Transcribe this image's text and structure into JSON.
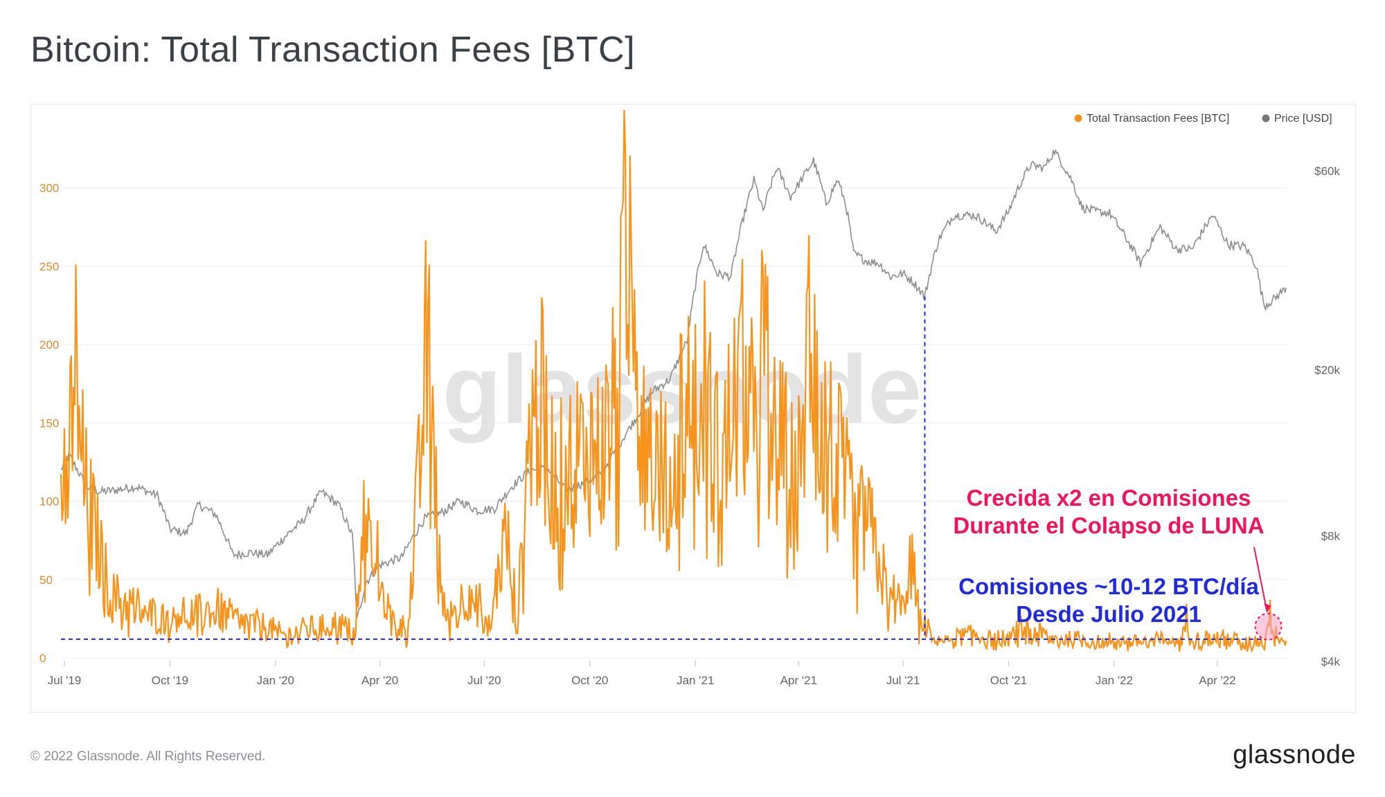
{
  "page": {
    "title": "Bitcoin: Total Transaction Fees [BTC]",
    "copyright": "© 2022 Glassnode. All Rights Reserved.",
    "brand_logo": "glassnode",
    "watermark": "glassnode"
  },
  "colors": {
    "fees": "#f7931a",
    "price": "#8c8c8c",
    "grid": "#ececec",
    "annotation_blue": "#1f2ae0",
    "annotation_pink": "#f0155a",
    "title": "#3b4046",
    "axis_text": "#5f6368",
    "fee_tick_text": "#d98a2b"
  },
  "legend": {
    "placement": "top-right",
    "items": [
      {
        "label": "Total Transaction Fees [BTC]",
        "color": "#f7931a"
      },
      {
        "label": "Price [USD]",
        "color": "#777777"
      }
    ]
  },
  "annotations": {
    "luna_text_line1": "Crecida x2 en Comisiones",
    "luna_text_line2": "Durante el Colapso de LUNA",
    "fees_text_line1": "Comisiones ~10-12 BTC/día",
    "fees_text_line2": "Desde Julio 2021"
  },
  "chart_data": {
    "type": "line",
    "title": "Bitcoin: Total Transaction Fees [BTC]",
    "x_tick_labels": [
      "Jul '19",
      "Oct '19",
      "Jan '20",
      "Apr '20",
      "Jul '20",
      "Oct '20",
      "Jan '21",
      "Apr '21",
      "Jul '21",
      "Oct '21",
      "Jan '22",
      "Apr '22"
    ],
    "x_tick_dates": [
      "2019-07-01",
      "2019-10-01",
      "2020-01-01",
      "2020-04-01",
      "2020-07-01",
      "2020-10-01",
      "2021-01-01",
      "2021-04-01",
      "2021-07-01",
      "2021-10-01",
      "2022-01-01",
      "2022-04-01"
    ],
    "x_range": [
      "2019-06-28",
      "2022-06-01"
    ],
    "left_axis": {
      "label": "",
      "ticks": [
        0,
        50,
        100,
        150,
        200,
        250,
        300
      ],
      "ylim": [
        0,
        340
      ]
    },
    "right_axis": {
      "label": "",
      "scale": "log",
      "ticks": [
        4000,
        8000,
        20000,
        60000
      ],
      "tick_labels": [
        "$4k",
        "$8k",
        "$20k",
        "$60k"
      ]
    },
    "grid": true,
    "series": [
      {
        "name": "Total Transaction Fees [BTC]",
        "axis": "left",
        "color": "#f7931a",
        "x": [
          "2019-06-28",
          "2019-07-03",
          "2019-07-10",
          "2019-07-18",
          "2019-07-28",
          "2019-08-10",
          "2019-08-25",
          "2019-09-10",
          "2019-09-25",
          "2019-10-10",
          "2019-10-25",
          "2019-11-10",
          "2019-11-25",
          "2019-12-10",
          "2019-12-25",
          "2020-01-10",
          "2020-01-25",
          "2020-02-10",
          "2020-02-25",
          "2020-03-10",
          "2020-03-18",
          "2020-03-28",
          "2020-04-10",
          "2020-04-25",
          "2020-05-05",
          "2020-05-12",
          "2020-05-18",
          "2020-05-26",
          "2020-06-05",
          "2020-06-20",
          "2020-07-05",
          "2020-07-20",
          "2020-07-30",
          "2020-08-10",
          "2020-08-20",
          "2020-09-01",
          "2020-09-15",
          "2020-09-28",
          "2020-10-10",
          "2020-10-20",
          "2020-10-28",
          "2020-11-03",
          "2020-11-08",
          "2020-11-14",
          "2020-11-20",
          "2020-11-28",
          "2020-12-08",
          "2020-12-20",
          "2021-01-03",
          "2021-01-10",
          "2021-01-20",
          "2021-02-01",
          "2021-02-10",
          "2021-02-20",
          "2021-03-01",
          "2021-03-10",
          "2021-03-20",
          "2021-04-01",
          "2021-04-08",
          "2021-04-14",
          "2021-04-18",
          "2021-04-22",
          "2021-04-28",
          "2021-05-05",
          "2021-05-12",
          "2021-05-20",
          "2021-05-30",
          "2021-06-10",
          "2021-06-20",
          "2021-06-30",
          "2021-07-08",
          "2021-07-15",
          "2021-08-01",
          "2021-08-15",
          "2021-09-01",
          "2021-09-15",
          "2021-10-01",
          "2021-10-15",
          "2021-11-01",
          "2021-11-15",
          "2021-12-01",
          "2021-12-15",
          "2022-01-01",
          "2022-01-15",
          "2022-02-01",
          "2022-02-15",
          "2022-03-01",
          "2022-03-05",
          "2022-03-15",
          "2022-04-01",
          "2022-04-15",
          "2022-04-25",
          "2022-05-05",
          "2022-05-10",
          "2022-05-13",
          "2022-05-16",
          "2022-05-25",
          "2022-05-31"
        ],
        "values": [
          120,
          95,
          198,
          110,
          80,
          40,
          35,
          30,
          25,
          30,
          28,
          32,
          25,
          22,
          20,
          14,
          18,
          20,
          22,
          16,
          85,
          70,
          25,
          18,
          110,
          200,
          140,
          30,
          30,
          45,
          20,
          80,
          25,
          150,
          160,
          110,
          125,
          140,
          130,
          150,
          200,
          290,
          280,
          160,
          180,
          130,
          110,
          160,
          180,
          170,
          130,
          150,
          180,
          150,
          200,
          140,
          130,
          120,
          180,
          300,
          180,
          150,
          140,
          125,
          110,
          80,
          90,
          60,
          40,
          35,
          65,
          25,
          12,
          13,
          15,
          12,
          13,
          20,
          14,
          12,
          12,
          10,
          12,
          10,
          11,
          12,
          10,
          25,
          12,
          13,
          12,
          9,
          12,
          10,
          13,
          28,
          14,
          11
        ]
      },
      {
        "name": "Price [USD]",
        "axis": "right",
        "color": "#777777",
        "x": [
          "2019-06-28",
          "2019-07-05",
          "2019-07-20",
          "2019-08-01",
          "2019-08-15",
          "2019-09-01",
          "2019-09-20",
          "2019-10-01",
          "2019-10-15",
          "2019-10-26",
          "2019-11-10",
          "2019-11-25",
          "2019-12-10",
          "2019-12-25",
          "2020-01-10",
          "2020-01-25",
          "2020-02-10",
          "2020-02-25",
          "2020-03-08",
          "2020-03-12",
          "2020-03-20",
          "2020-04-01",
          "2020-04-20",
          "2020-05-10",
          "2020-05-25",
          "2020-06-10",
          "2020-06-25",
          "2020-07-10",
          "2020-07-25",
          "2020-08-10",
          "2020-08-25",
          "2020-09-10",
          "2020-09-25",
          "2020-10-10",
          "2020-10-25",
          "2020-11-10",
          "2020-11-25",
          "2020-12-10",
          "2020-12-25",
          "2021-01-08",
          "2021-01-20",
          "2021-02-01",
          "2021-02-10",
          "2021-02-21",
          "2021-03-01",
          "2021-03-13",
          "2021-03-25",
          "2021-04-05",
          "2021-04-14",
          "2021-04-25",
          "2021-05-05",
          "2021-05-12",
          "2021-05-19",
          "2021-05-30",
          "2021-06-10",
          "2021-06-20",
          "2021-07-01",
          "2021-07-10",
          "2021-07-20",
          "2021-08-01",
          "2021-08-14",
          "2021-09-01",
          "2021-09-07",
          "2021-09-20",
          "2021-10-01",
          "2021-10-10",
          "2021-10-20",
          "2021-11-01",
          "2021-11-10",
          "2021-11-25",
          "2021-12-04",
          "2021-12-15",
          "2021-12-28",
          "2022-01-10",
          "2022-01-24",
          "2022-02-10",
          "2022-02-24",
          "2022-03-10",
          "2022-03-28",
          "2022-04-10",
          "2022-04-25",
          "2022-05-05",
          "2022-05-09",
          "2022-05-12",
          "2022-05-20",
          "2022-05-31"
        ],
        "values": [
          11500,
          12500,
          10500,
          10200,
          10300,
          10500,
          10000,
          8300,
          8100,
          9500,
          9000,
          7200,
          7300,
          7200,
          8000,
          8700,
          10200,
          9500,
          8000,
          5000,
          6200,
          6800,
          7100,
          8800,
          9100,
          9700,
          9200,
          9300,
          10500,
          11500,
          11600,
          10300,
          10700,
          11200,
          13000,
          15300,
          17800,
          19000,
          23500,
          40000,
          34000,
          33500,
          44000,
          57000,
          48000,
          61000,
          52000,
          58000,
          63500,
          50000,
          57000,
          50000,
          38000,
          36500,
          36000,
          33500,
          34000,
          32500,
          30000,
          41000,
          47000,
          47000,
          46000,
          43000,
          48000,
          55000,
          62000,
          61000,
          67000,
          57000,
          49000,
          48000,
          47500,
          42000,
          36000,
          44000,
          39000,
          39000,
          47000,
          40000,
          39500,
          35500,
          31000,
          28500,
          29500,
          31500
        ]
      }
    ]
  }
}
